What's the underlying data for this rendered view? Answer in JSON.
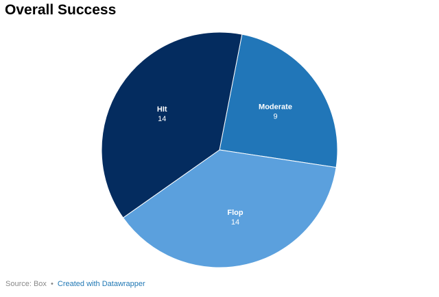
{
  "title": "Overall Success",
  "footer": {
    "source": "Source: Box",
    "separator": "•",
    "credit": "Created with Datawrapper"
  },
  "colors": {
    "Hit": "#042c5f",
    "Moderate": "#2176b8",
    "Flop": "#5ba0dd"
  },
  "chart_data": {
    "type": "pie",
    "title": "Overall Success",
    "categories": [
      "Moderate",
      "Flop",
      "Hit"
    ],
    "values": [
      9,
      14,
      14
    ],
    "slice_labels": [
      "Moderate",
      "Flop",
      "HIt"
    ],
    "start_angle_deg": 11,
    "legend": "none (labels on slices)"
  }
}
